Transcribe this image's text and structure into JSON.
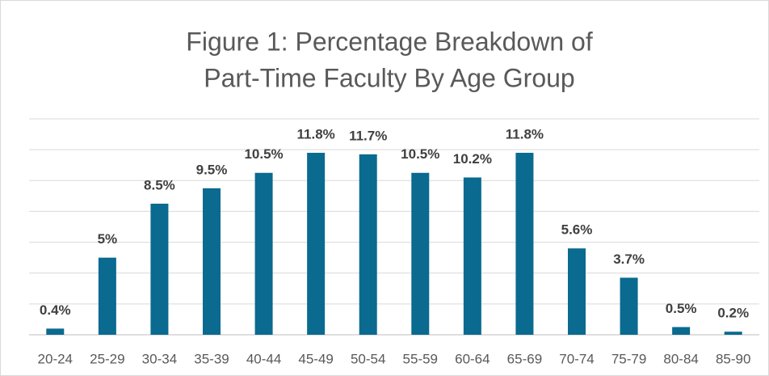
{
  "chart_data": {
    "type": "bar",
    "title": [
      "Figure 1: Percentage Breakdown of",
      "Part-Time Faculty By Age Group"
    ],
    "categories": [
      "20-24",
      "25-29",
      "30-34",
      "35-39",
      "40-44",
      "45-49",
      "50-54",
      "55-59",
      "60-64",
      "65-69",
      "70-74",
      "75-79",
      "80-84",
      "85-90"
    ],
    "values": [
      0.4,
      5,
      8.5,
      9.5,
      10.5,
      11.8,
      11.7,
      10.5,
      10.2,
      11.8,
      5.6,
      3.7,
      0.5,
      0.2
    ],
    "value_labels": [
      "0.4%",
      "5%",
      "8.5%",
      "9.5%",
      "10.5%",
      "11.8%",
      "11.7%",
      "10.5%",
      "10.2%",
      "11.8%",
      "5.6%",
      "3.7%",
      "0.5%",
      "0.2%"
    ],
    "color": "#0a6a8f",
    "ylim": [
      0,
      14
    ],
    "yticks": [
      0,
      2,
      4,
      6,
      8,
      10,
      12,
      14
    ],
    "grid": true
  }
}
